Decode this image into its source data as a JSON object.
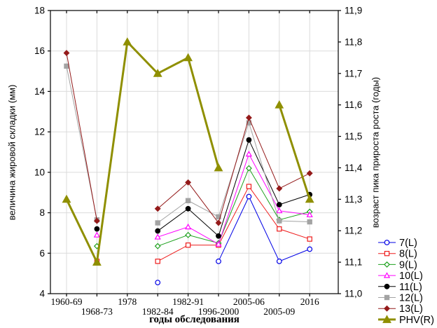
{
  "chart_data": {
    "type": "line",
    "title": "",
    "categories": [
      "1960-69",
      "1968-73",
      "1978",
      "1982-84",
      "1982-91",
      "1996-2000",
      "2005-06",
      "2005-09",
      "2016"
    ],
    "series": [
      {
        "name": "7(L)",
        "axis": "left",
        "color": "#0000E6",
        "marker": "circle",
        "fill": "open",
        "line_width": 1,
        "values": [
          null,
          null,
          null,
          4.55,
          null,
          5.6,
          8.8,
          5.6,
          6.2
        ]
      },
      {
        "name": "8(L)",
        "axis": "left",
        "color": "#EE1C1C",
        "marker": "square",
        "fill": "open",
        "line_width": 1,
        "values": [
          null,
          5.6,
          null,
          5.6,
          6.4,
          6.4,
          9.3,
          7.2,
          6.7
        ]
      },
      {
        "name": "9(L)",
        "axis": "left",
        "color": "#1FA11F",
        "marker": "diamond",
        "fill": "open",
        "line_width": 1,
        "values": [
          null,
          6.35,
          null,
          6.35,
          6.9,
          6.5,
          10.2,
          7.65,
          8.05
        ]
      },
      {
        "name": "10(L)",
        "axis": "left",
        "color": "#FF00FF",
        "marker": "triangle",
        "fill": "open",
        "line_width": 1,
        "values": [
          null,
          6.9,
          null,
          6.8,
          7.3,
          6.45,
          10.9,
          8.1,
          7.9
        ]
      },
      {
        "name": "11(L)",
        "axis": "left",
        "color": "#000000",
        "marker": "circle",
        "fill": "solid",
        "line_width": 1,
        "values": [
          null,
          7.2,
          null,
          7.1,
          8.2,
          6.85,
          11.6,
          8.4,
          8.9
        ]
      },
      {
        "name": "12(L)",
        "axis": "left",
        "color": "#A3A3A3",
        "marker": "square",
        "fill": "solid",
        "line_width": 1,
        "values": [
          15.25,
          7.65,
          null,
          7.5,
          8.6,
          7.8,
          12.45,
          7.6,
          7.55
        ]
      },
      {
        "name": "13(L)",
        "axis": "left",
        "color": "#941A1A",
        "marker": "diamond",
        "fill": "solid",
        "line_width": 1,
        "values": [
          15.9,
          7.6,
          null,
          8.2,
          9.5,
          7.5,
          12.7,
          9.2,
          9.95
        ]
      },
      {
        "name": "PHV(R)",
        "axis": "right",
        "color": "#8F8F00",
        "marker": "triangle",
        "fill": "solid",
        "line_width": 3,
        "values": [
          11.3,
          11.1,
          11.8,
          11.7,
          11.75,
          11.4,
          null,
          11.6,
          11.3
        ]
      }
    ],
    "left_axis": {
      "title": "величина жировой складки (мм)",
      "min": 4,
      "max": 18,
      "tick_step": 2,
      "ticks": [
        "4",
        "6",
        "8",
        "10",
        "12",
        "14",
        "16",
        "18"
      ]
    },
    "right_axis": {
      "title": "возраст пика прироста роста (годы)",
      "min": 11.0,
      "max": 11.9,
      "tick_step": 0.1,
      "ticks": [
        "11,0",
        "11,1",
        "11,2",
        "11,3",
        "11,4",
        "11,5",
        "11,6",
        "11,7",
        "11,8",
        "11,9"
      ]
    },
    "x_axis": {
      "title": "годы обследования"
    },
    "grid": true,
    "legend_position": "right-bottom",
    "colors": {
      "grid": "#DBDBDB",
      "axis": "#000000",
      "text": "#000000",
      "background": "#FFFFFF"
    }
  }
}
